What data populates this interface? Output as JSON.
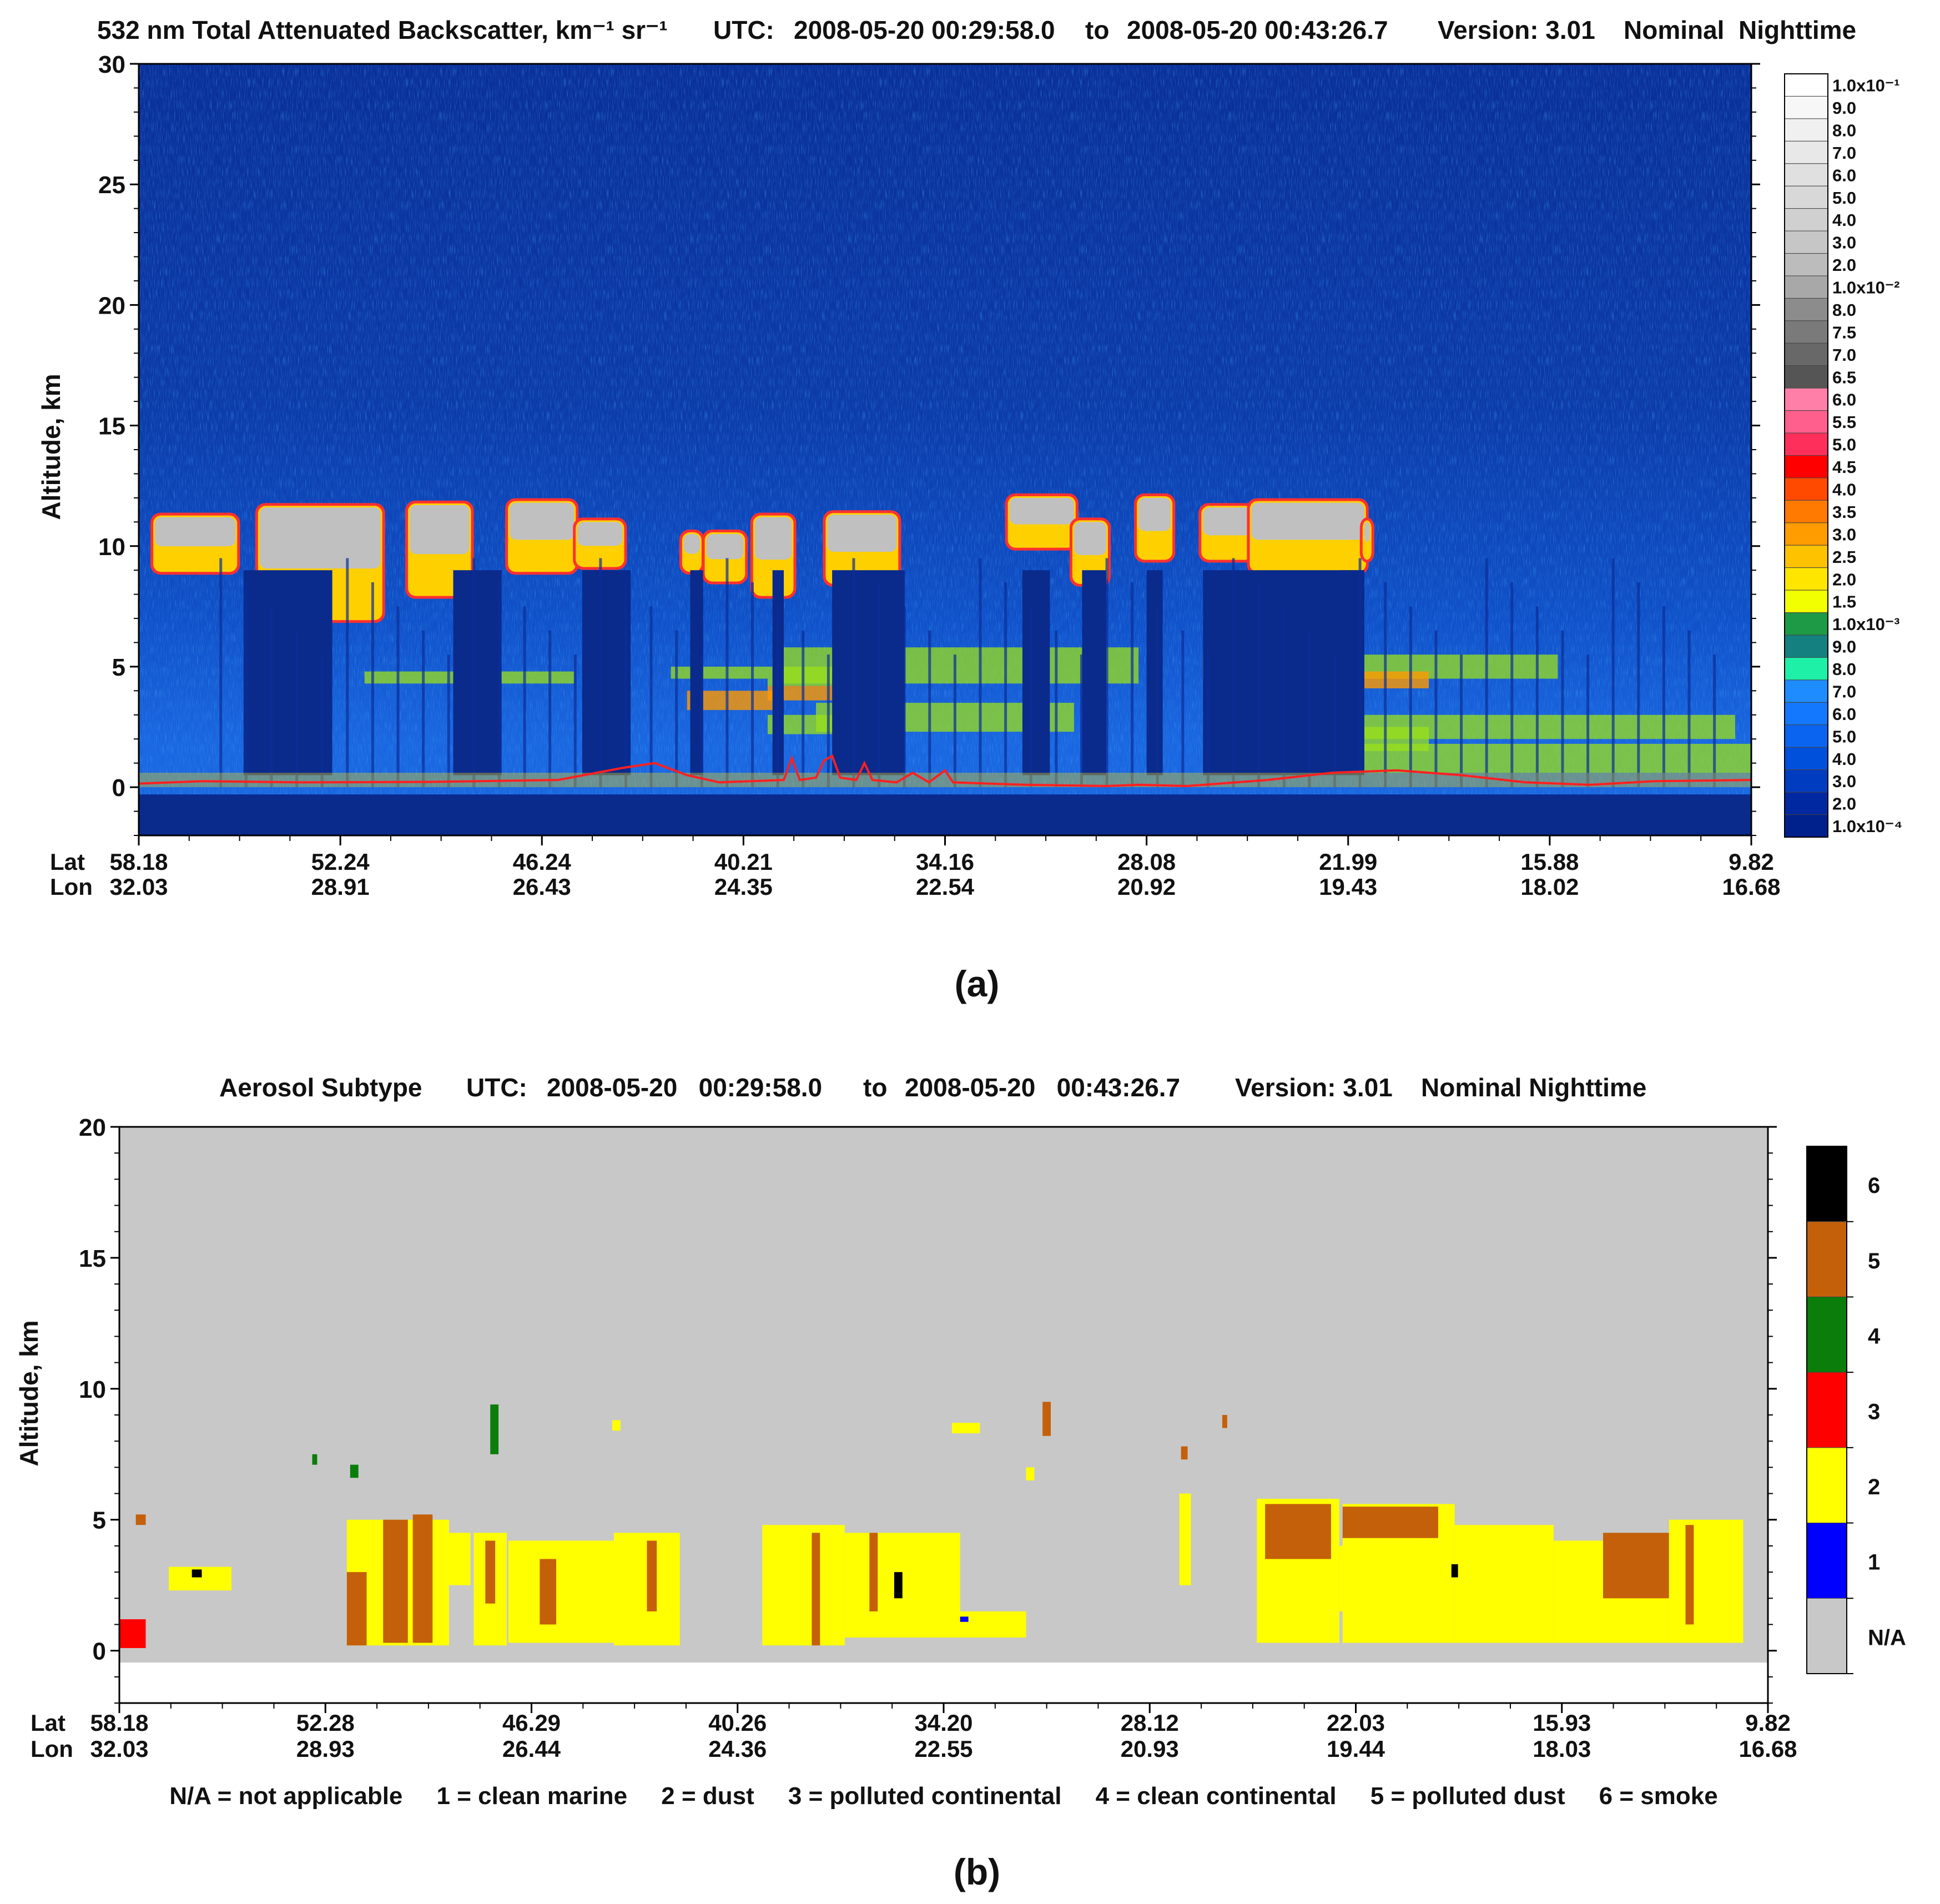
{
  "chart_data": [
    {
      "type": "heatmap",
      "panel_label": "(a)",
      "title": "532 nm Total Attenuated Backscatter, km⁻¹ sr⁻¹",
      "utc_label": "UTC:",
      "utc_start": "2008-05-20 00:29:58.0",
      "utc_to": "to",
      "utc_end": "2008-05-20 00:43:26.7",
      "version_label": "Version: 3.01",
      "mode_label": "Nominal  Nighttime",
      "ylabel": "Altitude, km",
      "ylim": [
        -2,
        30
      ],
      "yticks": [
        "30",
        "25",
        "20",
        "15",
        "10",
        "5",
        "0"
      ],
      "lat_label": "Lat",
      "lon_label": "Lon",
      "lat_ticks": [
        "58.18",
        "52.24",
        "46.24",
        "40.21",
        "34.16",
        "28.08",
        "21.99",
        "15.88",
        "9.82"
      ],
      "lon_ticks": [
        "32.03",
        "28.91",
        "26.43",
        "24.35",
        "22.54",
        "20.92",
        "19.43",
        "18.02",
        "16.68"
      ],
      "colorbar": {
        "labels": [
          "1.0x10⁻¹",
          "9.0",
          "8.0",
          "7.0",
          "6.0",
          "5.0",
          "4.0",
          "3.0",
          "2.0",
          "1.0x10⁻²",
          "8.0",
          "7.5",
          "7.0",
          "6.5",
          "6.0",
          "5.5",
          "5.0",
          "4.5",
          "4.0",
          "3.5",
          "3.0",
          "2.5",
          "2.0",
          "1.5",
          "1.0x10⁻³",
          "9.0",
          "8.0",
          "7.0",
          "6.0",
          "5.0",
          "4.0",
          "3.0",
          "2.0",
          "1.0x10⁻⁴"
        ],
        "colors": [
          "#ffffff",
          "#f7f7f7",
          "#f0f0f0",
          "#e8e8e8",
          "#e0e0e0",
          "#d8d8d8",
          "#d0d0d0",
          "#c6c6c6",
          "#bcbcbc",
          "#a8a8a8",
          "#8c8c8c",
          "#7a7a7a",
          "#686868",
          "#555555",
          "#ff7fa8",
          "#ff5f8c",
          "#ff2f5c",
          "#ff0000",
          "#ff4a00",
          "#ff7a00",
          "#ff9c00",
          "#ffc200",
          "#ffe600",
          "#f2ff00",
          "#1e9a46",
          "#148080",
          "#1ef0a8",
          "#1e8cff",
          "#1478ff",
          "#0a64f0",
          "#0050dc",
          "#003cc0",
          "#0028a0",
          "#00208c"
        ]
      },
      "surface_line_color": "#ff2020"
    },
    {
      "type": "heatmap",
      "panel_label": "(b)",
      "title": "Aerosol Subtype",
      "utc_label": "UTC:",
      "utc_start": "2008-05-20   00:29:58.0",
      "utc_to": "to",
      "utc_end": "2008-05-20   00:43:26.7",
      "version_label": "Version: 3.01",
      "mode_label": "Nominal Nighttime",
      "ylabel": "Altitude, km",
      "ylim": [
        -2,
        20
      ],
      "yticks": [
        "20",
        "15",
        "10",
        "5",
        "0"
      ],
      "lat_label": "Lat",
      "lon_label": "Lon",
      "lat_ticks": [
        "58.18",
        "52.28",
        "46.29",
        "40.26",
        "34.20",
        "28.12",
        "22.03",
        "15.93",
        "9.82"
      ],
      "lon_ticks": [
        "32.03",
        "28.93",
        "26.44",
        "24.36",
        "22.55",
        "20.93",
        "19.44",
        "18.03",
        "16.68"
      ],
      "colorbar": {
        "labels": [
          "6",
          "5",
          "4",
          "3",
          "2",
          "1",
          "N/A"
        ],
        "colors": [
          "#000000",
          "#c4600a",
          "#0a7d0a",
          "#ff0000",
          "#ffff00",
          "#0000ff",
          "#c8c8c8"
        ]
      },
      "legend_text": "N/A = not applicable     1 = clean marine     2 = dust     3 = polluted continental     4 = clean continental     5 = polluted dust     6 = smoke"
    }
  ]
}
